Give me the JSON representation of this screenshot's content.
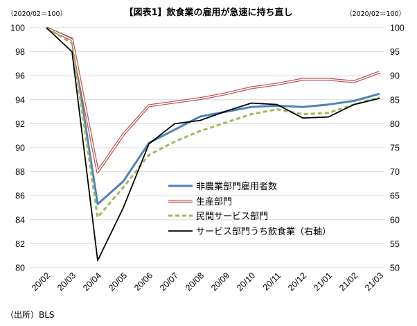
{
  "chart_data": {
    "type": "line",
    "title": "【図表1】飲食業の雇用が急速に持ち直し",
    "left_unit": "（2020/02＝100）",
    "right_unit": "（2020/02＝100）",
    "source": "（出所）BLS",
    "categories": [
      "20/02",
      "20/03",
      "20/04",
      "20/05",
      "20/06",
      "20/07",
      "20/08",
      "20/09",
      "20/10",
      "20/11",
      "20/12",
      "21/01",
      "21/02",
      "21/03"
    ],
    "y_left": {
      "min": 80,
      "max": 100,
      "step": 2,
      "ticks": [
        "80",
        "82",
        "84",
        "86",
        "88",
        "90",
        "92",
        "94",
        "96",
        "98",
        "100"
      ]
    },
    "y_right": {
      "min": 50,
      "max": 100,
      "step": 5,
      "ticks": [
        "50",
        "55",
        "60",
        "65",
        "70",
        "75",
        "80",
        "85",
        "90",
        "95",
        "100"
      ]
    },
    "grid": "horizontal",
    "legend_position": "center-right",
    "series": [
      {
        "name": "非農業部門雇用者数",
        "axis": "left",
        "color": "#4f81bd",
        "style": "solid",
        "values": [
          100,
          99.1,
          85.3,
          87.2,
          90.4,
          91.5,
          92.6,
          93.0,
          93.4,
          93.5,
          93.4,
          93.6,
          93.9,
          94.5
        ]
      },
      {
        "name": "生産部門",
        "axis": "left",
        "color": "#c0504d",
        "style": "double",
        "values": [
          100,
          99.0,
          88.0,
          91.1,
          93.5,
          93.8,
          94.1,
          94.5,
          95.0,
          95.3,
          95.7,
          95.7,
          95.5,
          96.3
        ]
      },
      {
        "name": "民間サービス部門",
        "axis": "left",
        "color": "#9bbb59",
        "style": "dashed",
        "values": [
          100,
          98.7,
          84.2,
          86.7,
          89.4,
          90.5,
          91.4,
          92.1,
          92.8,
          93.2,
          92.8,
          92.9,
          93.6,
          94.2
        ]
      },
      {
        "name": "サービス部門うち飲食業（右軸）",
        "axis": "right",
        "color": "#000000",
        "style": "solid",
        "values": [
          100,
          95.0,
          51.5,
          62.5,
          75.8,
          80.0,
          80.7,
          82.6,
          84.3,
          84.0,
          81.2,
          81.4,
          84.0,
          85.3
        ]
      }
    ]
  }
}
